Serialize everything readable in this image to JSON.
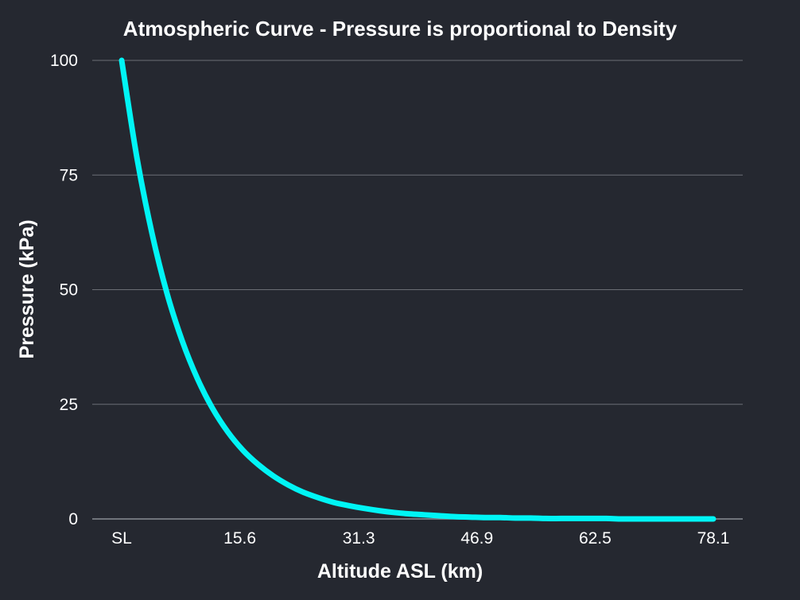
{
  "chart_data": {
    "type": "line",
    "title": "Atmospheric Curve - Pressure is proportional to Density",
    "xlabel": "Altitude ASL (km)",
    "ylabel": "Pressure (kPa)",
    "x_tick_labels": [
      "SL",
      "15.6",
      "31.3",
      "46.9",
      "62.5",
      "78.1"
    ],
    "x_tick_values": [
      0,
      15.6,
      31.3,
      46.9,
      62.5,
      78.1
    ],
    "y_tick_labels": [
      "0",
      "25",
      "50",
      "75",
      "100"
    ],
    "y_tick_values": [
      0,
      25,
      50,
      75,
      100
    ],
    "xlim": [
      0,
      78.1
    ],
    "ylim": [
      0,
      100
    ],
    "grid": "horizontal",
    "legend": "none",
    "series": [
      {
        "color": "#00f5f5",
        "x": [
          0,
          2,
          4,
          6,
          8,
          10,
          12,
          14,
          16,
          18,
          20,
          22,
          24,
          26,
          28,
          30,
          32,
          34,
          36,
          38,
          40,
          42,
          44,
          46,
          48,
          50,
          52,
          54,
          56,
          58,
          60,
          62,
          64,
          66,
          68,
          70,
          72,
          74,
          76,
          78.1
        ],
        "y": [
          100,
          78.9,
          62.3,
          49.1,
          38.8,
          30.6,
          24.1,
          19.0,
          15.0,
          11.9,
          9.4,
          7.4,
          5.8,
          4.6,
          3.6,
          2.9,
          2.3,
          1.8,
          1.4,
          1.1,
          0.9,
          0.7,
          0.5,
          0.4,
          0.3,
          0.3,
          0.2,
          0.2,
          0.1,
          0.1,
          0.1,
          0.1,
          0.1,
          0.0,
          0.0,
          0.0,
          0.0,
          0.0,
          0.0,
          0.0
        ]
      }
    ]
  }
}
